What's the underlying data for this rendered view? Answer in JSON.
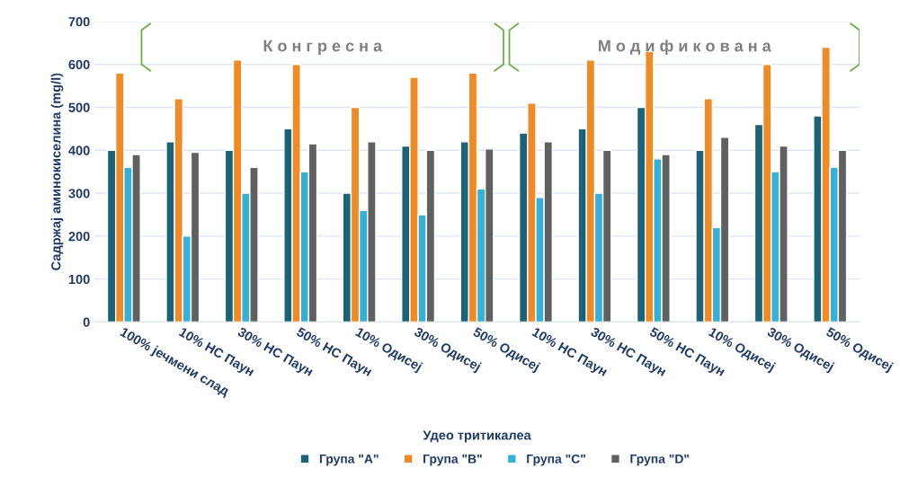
{
  "chart_data": {
    "type": "bar",
    "xlabel": "Удео тритикалеа",
    "ylabel": "Садржај аминокиселина (mg/l)",
    "categories": [
      "100% јечмени слад",
      "10% НС Паун",
      "30% НС Паун",
      "50% НС Паун",
      "10% Одисеј",
      "30% Одисеј",
      "50% Одисеј",
      "10% НС Паун",
      "30% НС Паун",
      "50% НС Паун",
      "10% Одисеј",
      "30% Одисеј",
      "50% Одисеј"
    ],
    "series": [
      {
        "name": "Група \"A\"",
        "color": "#1b6378",
        "values": [
          400,
          420,
          400,
          450,
          300,
          410,
          420,
          440,
          450,
          500,
          400,
          460,
          480
        ]
      },
      {
        "name": "Група \"B\"",
        "color": "#f08a24",
        "values": [
          580,
          520,
          610,
          600,
          500,
          570,
          580,
          510,
          610,
          630,
          520,
          600,
          640
        ]
      },
      {
        "name": "Група \"C\"",
        "color": "#35b0d6",
        "values": [
          360,
          200,
          300,
          350,
          260,
          250,
          310,
          290,
          300,
          380,
          220,
          350,
          360
        ]
      },
      {
        "name": "Група \"D\"",
        "color": "#606060",
        "values": [
          390,
          395,
          360,
          415,
          420,
          400,
          403,
          420,
          400,
          390,
          430,
          410,
          400
        ]
      }
    ],
    "annotations": [
      "К о н г р е с н а",
      "М о д и ф и к о в а н а"
    ],
    "ylim": [
      0,
      700
    ],
    "yticks": [
      0,
      100,
      200,
      300,
      400,
      500,
      600,
      700
    ],
    "grid": "y",
    "legend": "bottom"
  }
}
